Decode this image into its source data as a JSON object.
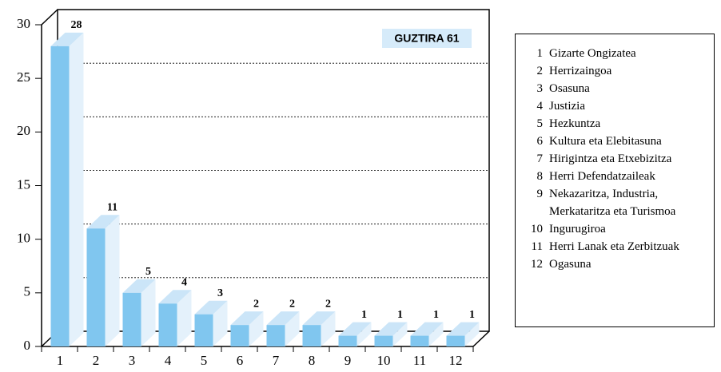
{
  "chart_data": {
    "type": "bar3d",
    "categories": [
      "1",
      "2",
      "3",
      "4",
      "5",
      "6",
      "7",
      "8",
      "9",
      "10",
      "11",
      "12"
    ],
    "values": [
      28,
      11,
      5,
      4,
      3,
      2,
      2,
      2,
      1,
      1,
      1,
      1
    ],
    "color": "#80c6ef",
    "ylim": [
      0,
      30
    ],
    "yticks": [
      0,
      5,
      10,
      15,
      20,
      25,
      30
    ],
    "grid": true,
    "annotation": "GUZTIRA 61",
    "legend": [
      "Gizarte Ongizatea",
      "Herrizaingoa",
      "Osasuna",
      "Justizia",
      "Hezkuntza",
      "Kultura eta Elebitasuna",
      "Hirigintza eta Etxebizitza",
      "Herri Defendatzaileak",
      "Nekazaritza, Industria, Merkataritza eta Turismoa",
      "Ingurugiroa",
      "Herri Lanak eta Zerbitzuak",
      "Ogasuna"
    ]
  }
}
